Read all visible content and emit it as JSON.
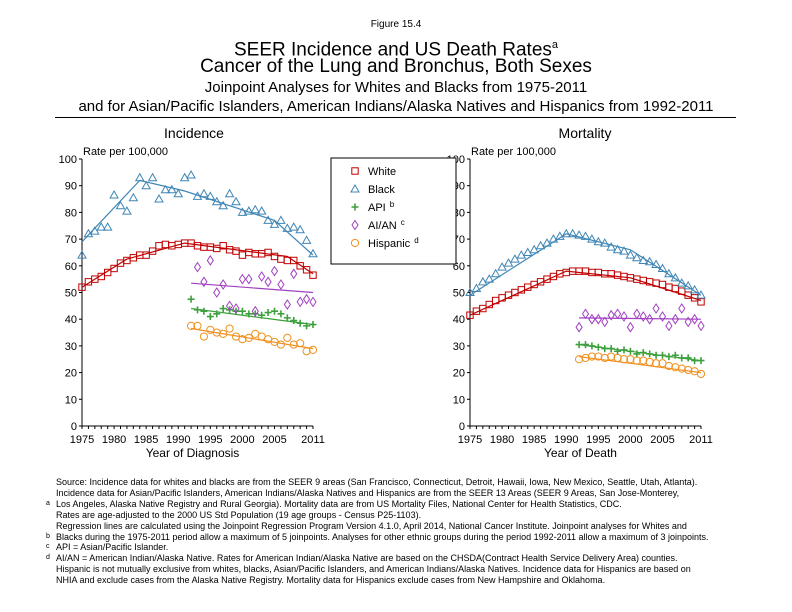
{
  "figure_label": "Figure 15.4",
  "title": {
    "main": "SEER Incidence and US Death Rates",
    "main_sup": "a",
    "line2": "Cancer of the Lung and Bronchus, Both Sexes",
    "line3": "Joinpoint Analyses for Whites and Blacks from 1975-2011",
    "line4": "and for Asian/Pacific Islanders, American Indians/Alaska Natives and Hispanics from 1992-2011"
  },
  "legend": {
    "items": [
      {
        "label": "White",
        "sup": "",
        "color": "#c00000",
        "marker": "square"
      },
      {
        "label": "Black",
        "sup": "",
        "color": "#3f86b5",
        "marker": "triangle"
      },
      {
        "label": "API",
        "sup": "b",
        "color": "#3ca03c",
        "marker": "plus"
      },
      {
        "label": "AI/AN",
        "sup": "c",
        "color": "#a040c0",
        "marker": "diamond"
      },
      {
        "label": "Hispanic",
        "sup": "d",
        "color": "#f0901e",
        "marker": "circle"
      }
    ]
  },
  "chart_data": [
    {
      "type": "scatter",
      "title": "Incidence",
      "ylabel": "Rate per 100,000",
      "xlabel": "Year of Diagnosis",
      "xlim": [
        1975,
        2011
      ],
      "ylim": [
        0,
        100
      ],
      "xticks": [
        1975,
        1980,
        1985,
        1990,
        1995,
        2000,
        2005,
        2011
      ],
      "yticks": [
        0,
        10,
        20,
        30,
        40,
        50,
        60,
        70,
        80,
        90,
        100
      ],
      "series": [
        {
          "name": "White",
          "x": [
            1975,
            1976,
            1977,
            1978,
            1979,
            1980,
            1981,
            1982,
            1983,
            1984,
            1985,
            1986,
            1987,
            1988,
            1989,
            1990,
            1991,
            1992,
            1993,
            1994,
            1995,
            1996,
            1997,
            1998,
            1999,
            2000,
            2001,
            2002,
            2003,
            2004,
            2005,
            2006,
            2007,
            2008,
            2009,
            2010,
            2011
          ],
          "y": [
            52,
            54,
            55,
            56,
            57.5,
            59,
            61,
            62,
            63,
            64,
            64,
            65.5,
            67.5,
            68,
            67.5,
            68,
            68.5,
            68.5,
            67.5,
            67,
            67,
            66.5,
            67.5,
            66,
            65.5,
            64,
            65,
            64.5,
            64.5,
            65,
            63.5,
            62.5,
            62,
            62,
            60,
            58.5,
            56.5
          ],
          "trend": [
            [
              1975,
              52
            ],
            [
              1982,
              62.5
            ],
            [
              1991,
              68.5
            ],
            [
              2007,
              63.5
            ],
            [
              2011,
              57
            ]
          ]
        },
        {
          "name": "Black",
          "x": [
            1975,
            1976,
            1977,
            1978,
            1979,
            1980,
            1981,
            1982,
            1983,
            1984,
            1985,
            1986,
            1987,
            1988,
            1989,
            1990,
            1991,
            1992,
            1993,
            1994,
            1995,
            1996,
            1997,
            1998,
            1999,
            2000,
            2001,
            2002,
            2003,
            2004,
            2005,
            2006,
            2007,
            2008,
            2009,
            2010,
            2011
          ],
          "y": [
            64,
            72,
            73,
            74.5,
            74.5,
            86.5,
            82.5,
            80.5,
            85.5,
            93,
            90,
            93,
            85,
            88.5,
            88.5,
            87,
            93,
            94,
            86,
            87,
            86,
            84,
            82.5,
            87,
            84,
            80,
            80.5,
            81,
            80.5,
            77,
            75.5,
            77,
            74,
            74.5,
            73.5,
            69.5,
            64.5
          ],
          "trend": [
            [
              1975,
              69
            ],
            [
              1984,
              92
            ],
            [
              1991,
              88
            ],
            [
              2005,
              77
            ],
            [
              2011,
              64
            ]
          ]
        },
        {
          "name": "API",
          "x": [
            1992,
            1993,
            1994,
            1995,
            1996,
            1997,
            1998,
            1999,
            2000,
            2001,
            2002,
            2003,
            2004,
            2005,
            2006,
            2007,
            2008,
            2009,
            2010,
            2011
          ],
          "y": [
            47.5,
            43.5,
            43,
            41,
            42,
            44,
            43.5,
            43,
            43,
            42,
            42,
            41.5,
            42.5,
            43,
            42,
            40.5,
            39.5,
            38.5,
            37.5,
            38
          ],
          "trend": [
            [
              1992,
              44
            ],
            [
              2011,
              38
            ]
          ]
        },
        {
          "name": "AI/AN",
          "x": [
            1993,
            1994,
            1995,
            1996,
            1997,
            1998,
            1999,
            2000,
            2001,
            2002,
            2003,
            2004,
            2005,
            2006,
            2007,
            2008,
            2009,
            2010,
            2011
          ],
          "y": [
            59.5,
            54,
            62,
            50,
            53,
            45,
            44,
            55,
            55,
            43,
            56,
            54,
            58,
            53,
            45.5,
            57,
            46.5,
            47.5,
            46.5
          ],
          "trend": [
            [
              1992,
              53.5
            ],
            [
              2011,
              50
            ]
          ]
        },
        {
          "name": "Hispanic",
          "x": [
            1992,
            1993,
            1994,
            1995,
            1996,
            1997,
            1998,
            1999,
            2000,
            2001,
            2002,
            2003,
            2004,
            2005,
            2006,
            2007,
            2008,
            2009,
            2010,
            2011
          ],
          "y": [
            37.5,
            37.5,
            33.5,
            36,
            35,
            34.5,
            36.5,
            33.5,
            32.5,
            33,
            34.5,
            33.5,
            32.5,
            31.5,
            30.5,
            33,
            30.5,
            31,
            28,
            28.5
          ],
          "trend": [
            [
              1992,
              36.5
            ],
            [
              2011,
              29
            ]
          ]
        }
      ]
    },
    {
      "type": "scatter",
      "title": "Mortality",
      "ylabel": "Rate per 100,000",
      "xlabel": "Year of Death",
      "xlim": [
        1975,
        2011
      ],
      "ylim": [
        0,
        100
      ],
      "xticks": [
        1975,
        1980,
        1985,
        1990,
        1995,
        2000,
        2005,
        2011
      ],
      "yticks": [
        0,
        10,
        20,
        30,
        40,
        50,
        60,
        70,
        80,
        90,
        100
      ],
      "series": [
        {
          "name": "White",
          "x": [
            1975,
            1976,
            1977,
            1978,
            1979,
            1980,
            1981,
            1982,
            1983,
            1984,
            1985,
            1986,
            1987,
            1988,
            1989,
            1990,
            1991,
            1992,
            1993,
            1994,
            1995,
            1996,
            1997,
            1998,
            1999,
            2000,
            2001,
            2002,
            2003,
            2004,
            2005,
            2006,
            2007,
            2008,
            2009,
            2010,
            2011
          ],
          "y": [
            41.5,
            43,
            44,
            45.5,
            47,
            48,
            49,
            50,
            51,
            52,
            53,
            54,
            55,
            56,
            57,
            57.5,
            58,
            58,
            58,
            57.5,
            57.5,
            57,
            57,
            56.5,
            56,
            55.5,
            55,
            54.5,
            54,
            53.5,
            53,
            52,
            51.5,
            50.5,
            49,
            48,
            46.5
          ],
          "trend": [
            [
              1975,
              41.5
            ],
            [
              1990,
              58
            ],
            [
              2000,
              55.5
            ],
            [
              2011,
              47
            ]
          ]
        },
        {
          "name": "Black",
          "x": [
            1975,
            1976,
            1977,
            1978,
            1979,
            1980,
            1981,
            1982,
            1983,
            1984,
            1985,
            1986,
            1987,
            1988,
            1989,
            1990,
            1991,
            1992,
            1993,
            1994,
            1995,
            1996,
            1997,
            1998,
            1999,
            2000,
            2001,
            2002,
            2003,
            2004,
            2005,
            2006,
            2007,
            2008,
            2009,
            2010,
            2011
          ],
          "y": [
            50,
            51.5,
            54,
            55,
            57,
            59.5,
            61,
            62.5,
            64,
            65,
            66,
            67.5,
            68.5,
            70,
            71,
            72,
            72,
            71.5,
            71,
            70,
            69,
            68.5,
            67,
            66,
            65.5,
            64,
            63,
            62,
            61.5,
            60.5,
            59,
            57,
            55.5,
            53.5,
            52.5,
            51,
            49
          ],
          "trend": [
            [
              1975,
              49
            ],
            [
              1990,
              72
            ],
            [
              2000,
              66
            ],
            [
              2011,
              49
            ]
          ]
        },
        {
          "name": "API",
          "x": [
            1992,
            1993,
            1994,
            1995,
            1996,
            1997,
            1998,
            1999,
            2000,
            2001,
            2002,
            2003,
            2004,
            2005,
            2006,
            2007,
            2008,
            2009,
            2010,
            2011
          ],
          "y": [
            30.5,
            30.5,
            30,
            29.5,
            29,
            29,
            28,
            28.5,
            28,
            27,
            27.5,
            27,
            26.5,
            26.5,
            26,
            26.5,
            25.5,
            25.5,
            24.5,
            24.5
          ],
          "trend": [
            [
              1992,
              30.5
            ],
            [
              2011,
              24.5
            ]
          ]
        },
        {
          "name": "AI/AN",
          "x": [
            1992,
            1993,
            1994,
            1995,
            1996,
            1997,
            1998,
            1999,
            2000,
            2001,
            2002,
            2003,
            2004,
            2005,
            2006,
            2007,
            2008,
            2009,
            2010,
            2011
          ],
          "y": [
            37,
            42,
            40,
            40,
            39,
            41.5,
            42,
            41,
            37,
            42,
            41,
            40,
            44,
            41,
            37.5,
            40,
            44,
            39,
            40,
            37.5
          ],
          "trend": [
            [
              1992,
              40.5
            ],
            [
              2011,
              40
            ]
          ]
        },
        {
          "name": "Hispanic",
          "x": [
            1992,
            1993,
            1994,
            1995,
            1996,
            1997,
            1998,
            1999,
            2000,
            2001,
            2002,
            2003,
            2004,
            2005,
            2006,
            2007,
            2008,
            2009,
            2010,
            2011
          ],
          "y": [
            25,
            25.5,
            26,
            26,
            25.5,
            26,
            25.5,
            25,
            25,
            24.5,
            24.5,
            24,
            23.5,
            23.5,
            22.5,
            22,
            21.5,
            21,
            20.5,
            19.5
          ],
          "trend": [
            [
              1992,
              26
            ],
            [
              2011,
              20
            ]
          ]
        }
      ]
    }
  ],
  "footnotes": {
    "source_lines": [
      "Source:  Incidence data for whites and blacks are from the SEER 9 areas (San Francisco, Connecticut, Detroit, Hawaii, Iowa, New Mexico, Seattle, Utah, Atlanta).",
      "Incidence data for Asian/Pacific Islanders, American Indians/Alaska Natives and Hispanics are from the SEER 13 Areas (SEER 9 Areas, San Jose-Monterey,",
      "Los Angeles, Alaska Native Registry and Rural Georgia).  Mortality data are from US Mortality Files, National Center for Health Statistics, CDC.",
      "Rates are age-adjusted to the 2000 US Std Population (19 age groups - Census P25-1103).",
      "Regression lines are calculated using the Joinpoint Regression Program Version 4.1.0, April 2014, National Cancer Institute.  Joinpoint analyses for Whites and",
      "Blacks during the 1975-2011 period allow a maximum of 5 joinpoints. Analyses for other ethnic groups during the period 1992-2011 allow a maximum of 3 joinpoints.",
      "API = Asian/Pacific Islander.",
      "AI/AN = American Indian/Alaska Native.  Rates for American Indian/Alaska Native are based on the CHSDA(Contract Health Service Delivery Area) counties.",
      "Hispanic is not mutually exclusive from whites, blacks, Asian/Pacific Islanders, and American Indians/Alaska Natives.  Incidence data for Hispanics are based on",
      "NHIA and exclude cases from the Alaska Native Registry.  Mortality data for Hispanics exclude cases from New Hampshire and Oklahoma."
    ],
    "markers": [
      "a",
      "b",
      "c",
      "d"
    ]
  }
}
